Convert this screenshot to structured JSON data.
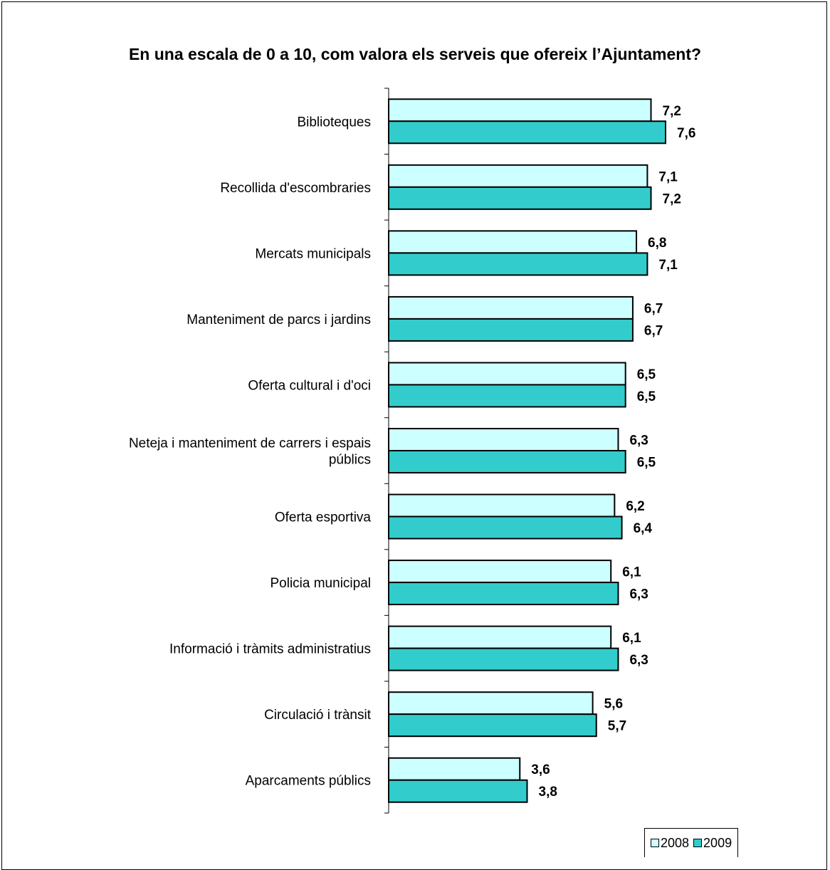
{
  "chart_data": {
    "type": "bar",
    "orientation": "horizontal",
    "title": "En una escala de 0 a 10, com valora els serveis que ofereix l’Ajuntament?",
    "categories": [
      "Biblioteques",
      "Recollida d'escombraries",
      "Mercats municipals",
      "Manteniment de parcs i jardins",
      "Oferta cultural i d'oci",
      "Neteja i manteniment de carrers i espais públics",
      "Oferta esportiva",
      "Policia municipal",
      "Informació i tràmits administratius",
      "Circulació i trànsit",
      "Aparcaments públics"
    ],
    "series": [
      {
        "name": "2008",
        "color": "#ccffff",
        "values": [
          7.2,
          7.1,
          6.8,
          6.7,
          6.5,
          6.3,
          6.2,
          6.1,
          6.1,
          5.6,
          3.6
        ],
        "labels": [
          "7,2",
          "7,1",
          "6,8",
          "6,7",
          "6,5",
          "6,3",
          "6,2",
          "6,1",
          "6,1",
          "5,6",
          "3,6"
        ]
      },
      {
        "name": "2009",
        "color": "#33cccc",
        "values": [
          7.6,
          7.2,
          7.1,
          6.7,
          6.5,
          6.5,
          6.4,
          6.3,
          6.3,
          5.7,
          3.8
        ],
        "labels": [
          "7,6",
          "7,2",
          "7,1",
          "6,7",
          "6,5",
          "6,5",
          "6,4",
          "6,3",
          "6,3",
          "5,7",
          "3,8"
        ]
      }
    ],
    "xlim": [
      0,
      10
    ],
    "grid": false,
    "legend_position": "bottom-right"
  }
}
